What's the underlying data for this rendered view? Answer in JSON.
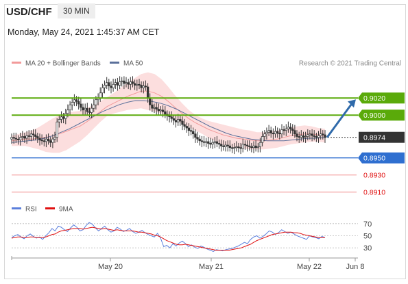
{
  "header": {
    "symbol": "USD/CHF",
    "timeframe": "30 MIN",
    "datetime": "Monday, May 24, 2021 1:45:37 AM CET"
  },
  "legend": {
    "ma20_label": "MA 20 + Bollinger Bands",
    "ma50_label": "MA 50",
    "credit": "Research © 2021 Trading Central"
  },
  "rsi_legend": {
    "rsi_label": "RSI",
    "ma_label": "9MA"
  },
  "colors": {
    "green": "#5aaa0a",
    "blue": "#2f6fd0",
    "red_line": "#f08a8a",
    "red_text": "#e01010",
    "candle": "#333333",
    "band": "#fbd3d3",
    "ma20": "#f29a9a",
    "ma50": "#5a6f9a",
    "rsi": "#5b7fdc",
    "rsi_ma": "#e01010",
    "arrow": "#2f6aaa",
    "current": "#333333"
  },
  "chart_data": [
    {
      "type": "candlestick",
      "x_ticks": [
        "May 20",
        "May 21",
        "May 22",
        "Jun 8"
      ],
      "ylim": [
        0.8905,
        0.9045
      ],
      "levels": [
        {
          "value": 0.902,
          "label": "0.9020",
          "kind": "resistance",
          "color": "#5aaa0a"
        },
        {
          "value": 0.9,
          "label": "0.9000",
          "kind": "resistance",
          "color": "#5aaa0a"
        },
        {
          "value": 0.8974,
          "label": "0.8974",
          "kind": "current",
          "color": "#333333"
        },
        {
          "value": 0.895,
          "label": "0.8950",
          "kind": "pivot",
          "color": "#2f6fd0"
        },
        {
          "value": 0.893,
          "label": "0.8930",
          "kind": "support",
          "color": "#e01010"
        },
        {
          "value": 0.891,
          "label": "0.8910",
          "kind": "support",
          "color": "#e01010"
        }
      ],
      "close": [
        0.8974,
        0.8973,
        0.8972,
        0.8971,
        0.8974,
        0.8975,
        0.8973,
        0.8976,
        0.8975,
        0.8978,
        0.8977,
        0.8975,
        0.8973,
        0.8971,
        0.897,
        0.8969,
        0.8972,
        0.897,
        0.8968,
        0.8972,
        0.8974,
        0.8992,
        0.8995,
        0.8998,
        0.8996,
        0.9002,
        0.9006,
        0.9012,
        0.9015,
        0.9018,
        0.9016,
        0.9013,
        0.9009,
        0.9006,
        0.9008,
        0.9004,
        0.9003,
        0.9008,
        0.9012,
        0.9018,
        0.902,
        0.9026,
        0.9032,
        0.9035,
        0.9038,
        0.9034,
        0.9032,
        0.9036,
        0.9038,
        0.9035,
        0.9039,
        0.904,
        0.9037,
        0.9038,
        0.9036,
        0.9039,
        0.9037,
        0.9035,
        0.9036,
        0.9035,
        0.9032,
        0.9034,
        0.9033,
        0.902,
        0.9012,
        0.9008,
        0.9009,
        0.9007,
        0.9005,
        0.9006,
        0.9004,
        0.9001,
        0.8999,
        0.8998,
        0.8996,
        0.8994,
        0.8992,
        0.8995,
        0.8993,
        0.8989,
        0.8987,
        0.8985,
        0.8982,
        0.8981,
        0.8978,
        0.8974,
        0.8972,
        0.897,
        0.8969,
        0.8968,
        0.8969,
        0.8967,
        0.8966,
        0.8968,
        0.8969,
        0.8967,
        0.8966,
        0.8964,
        0.8963,
        0.8965,
        0.8964,
        0.8962,
        0.8961,
        0.8962,
        0.8963,
        0.8962,
        0.8961,
        0.8966,
        0.8965,
        0.8964,
        0.8963,
        0.8962,
        0.8964,
        0.8962,
        0.8963,
        0.8968,
        0.8975,
        0.8978,
        0.898,
        0.8982,
        0.8979,
        0.8978,
        0.8981,
        0.8979,
        0.8978,
        0.8983,
        0.8982,
        0.8984,
        0.8986,
        0.8984,
        0.8982,
        0.8978,
        0.8975,
        0.8974,
        0.8976,
        0.8974,
        0.8975,
        0.8977,
        0.8978,
        0.8976,
        0.8975,
        0.8974,
        0.8976,
        0.8978,
        0.8977,
        0.8974
      ],
      "ma20": [
        0.897,
        0.8971,
        0.8972,
        0.8972,
        0.8973,
        0.8974,
        0.8976,
        0.8978,
        0.8981,
        0.8984,
        0.8987,
        0.8992,
        0.8998,
        0.9004,
        0.901,
        0.9014,
        0.9018,
        0.9022,
        0.9025,
        0.9028,
        0.9028,
        0.9026,
        0.9022,
        0.9016,
        0.9009,
        0.9002,
        0.8996,
        0.8991,
        0.8987,
        0.8983,
        0.898,
        0.8977,
        0.8975,
        0.8973,
        0.8972,
        0.8971,
        0.897,
        0.897,
        0.8971,
        0.8972,
        0.8974,
        0.8976,
        0.8977,
        0.8978,
        0.8978,
        0.8977,
        0.8976
      ],
      "ma50": [
        0.8968,
        0.8969,
        0.897,
        0.8971,
        0.8973,
        0.8976,
        0.898,
        0.8984,
        0.8989,
        0.8994,
        0.8999,
        0.9004,
        0.9008,
        0.9012,
        0.9015,
        0.9017,
        0.9017,
        0.9016,
        0.9014,
        0.9011,
        0.9007,
        0.9002,
        0.8997,
        0.8992,
        0.8987,
        0.8983,
        0.8979,
        0.8976,
        0.8974,
        0.8972,
        0.8971,
        0.897,
        0.897,
        0.897,
        0.8971,
        0.8972,
        0.8973,
        0.8973,
        0.8974
      ],
      "band_width": [
        0.0006,
        0.0007,
        0.0008,
        0.001,
        0.0013,
        0.0017,
        0.002,
        0.0022,
        0.0022,
        0.002,
        0.0018,
        0.0016,
        0.0014,
        0.0012,
        0.0011,
        0.0012,
        0.0014,
        0.0016,
        0.0018,
        0.002,
        0.0022,
        0.0022,
        0.002,
        0.0017,
        0.0014,
        0.0012,
        0.001,
        0.0009,
        0.0009,
        0.001,
        0.0011,
        0.0012,
        0.0012,
        0.0012,
        0.0011,
        0.0011,
        0.001,
        0.001,
        0.001,
        0.001,
        0.001,
        0.001,
        0.001,
        0.001,
        0.0009,
        0.0008,
        0.0008
      ]
    },
    {
      "type": "line",
      "name": "RSI",
      "ylim": [
        20,
        80
      ],
      "y_ticks": [
        70,
        50,
        30
      ],
      "rsi": [
        47,
        50,
        52,
        48,
        45,
        50,
        53,
        49,
        46,
        48,
        44,
        50,
        55,
        62,
        58,
        66,
        64,
        60,
        57,
        63,
        68,
        64,
        58,
        60,
        67,
        72,
        69,
        63,
        58,
        62,
        66,
        60,
        56,
        58,
        64,
        61,
        57,
        59,
        62,
        57,
        54,
        56,
        59,
        55,
        52,
        50,
        48,
        54,
        46,
        32,
        34,
        30,
        37,
        33,
        38,
        41,
        37,
        32,
        35,
        31,
        29,
        33,
        31,
        28,
        26,
        24,
        27,
        26,
        25,
        27,
        28,
        29,
        31,
        33,
        36,
        39,
        37,
        44,
        48,
        50,
        46,
        49,
        53,
        58,
        56,
        52,
        55,
        60,
        57,
        54,
        56,
        53,
        50,
        48,
        46,
        44,
        50,
        48,
        47,
        45,
        49,
        47
      ],
      "rsi_ma": [
        46,
        47,
        48,
        48,
        47,
        47,
        48,
        48,
        47,
        47,
        47,
        48,
        50,
        52,
        53,
        56,
        58,
        59,
        60,
        61,
        62,
        62,
        62,
        61,
        62,
        63,
        64,
        63,
        62,
        61,
        62,
        61,
        60,
        59,
        60,
        59,
        58,
        58,
        58,
        58,
        57,
        56,
        56,
        55,
        54,
        53,
        51,
        50,
        48,
        45,
        42,
        40,
        38,
        36,
        35,
        35,
        36,
        35,
        34,
        33,
        32,
        31,
        30,
        29,
        28,
        27,
        26,
        26,
        26,
        26,
        26,
        27,
        28,
        29,
        30,
        32,
        34,
        36,
        39,
        42,
        44,
        46,
        48,
        50,
        52,
        53,
        54,
        55,
        56,
        56,
        56,
        55,
        55,
        54,
        52,
        51,
        50,
        49,
        48,
        47,
        47,
        47
      ]
    }
  ]
}
